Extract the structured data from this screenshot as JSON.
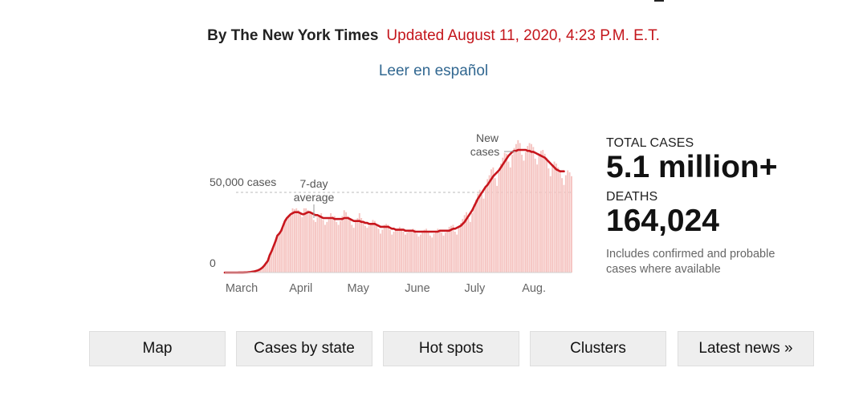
{
  "byline": {
    "author": "By The New York Times",
    "updated": "Updated August 11, 2020, 4:23 P.M. E.T."
  },
  "spanish_link": "Leer en español",
  "stats": {
    "total_label": "TOTAL CASES",
    "total_value": "5.1 million+",
    "deaths_label": "DEATHS",
    "deaths_value": "164,024",
    "note": "Includes confirmed and probable cases where available"
  },
  "buttons": {
    "map": "Map",
    "cases_by_state": "Cases by state",
    "hot_spots": "Hot spots",
    "clusters": "Clusters",
    "latest_news": "Latest news »"
  },
  "colors": {
    "accent_red": "#c4161c",
    "link_blue": "#326891",
    "bar_fill": "#f5c4c1",
    "avg_line": "#c8161d"
  },
  "chart_data": {
    "type": "bar",
    "title": "",
    "xlabel": "",
    "ylabel": "",
    "x_start": "2020-03-01",
    "ylim": [
      0,
      70000
    ],
    "ytick_labels": [
      "0",
      "50,000 cases"
    ],
    "ytick_values": [
      0,
      50000
    ],
    "xtick_labels": [
      "March",
      "April",
      "May",
      "June",
      "July",
      "Aug."
    ],
    "xtick_dates": [
      "2020-03-01",
      "2020-04-01",
      "2020-05-01",
      "2020-06-01",
      "2020-07-01",
      "2020-08-01"
    ],
    "annotations": {
      "avg_label": "7-day average",
      "new_label": "New cases"
    },
    "legend": "none",
    "grid": false,
    "series": [
      {
        "name": "New cases",
        "kind": "bar",
        "values": [
          0,
          0,
          0,
          0,
          0,
          10,
          20,
          40,
          70,
          100,
          200,
          300,
          450,
          600,
          900,
          1200,
          1700,
          2400,
          3400,
          4700,
          6000,
          9000,
          11000,
          13500,
          16000,
          19000,
          20000,
          21500,
          24000,
          26500,
          28000,
          29000,
          30000,
          33000,
          32500,
          33000,
          32000,
          30000,
          28500,
          33000,
          33000,
          32000,
          30500,
          30000,
          27000,
          26000,
          28500,
          29500,
          30500,
          27000,
          24500,
          26000,
          27500,
          30500,
          29000,
          29000,
          26000,
          24500,
          26500,
          29000,
          32000,
          31000,
          29000,
          27000,
          24500,
          23000,
          26000,
          28000,
          30500,
          28000,
          26500,
          24000,
          23000,
          24000,
          25500,
          27000,
          26500,
          25000,
          22500,
          20000,
          22000,
          24500,
          25000,
          24500,
          22000,
          19500,
          21000,
          22500,
          22500,
          23500,
          22500,
          21000,
          19500,
          20500,
          21500,
          22000,
          22500,
          22000,
          20000,
          18500,
          19500,
          21500,
          22000,
          22500,
          21000,
          19000,
          18000,
          20000,
          21500,
          22500,
          22000,
          20500,
          19000,
          20500,
          22000,
          23500,
          24000,
          24500,
          21000,
          19500,
          23000,
          25500,
          27500,
          29500,
          31000,
          28000,
          26000,
          30500,
          35000,
          37500,
          40500,
          42500,
          40000,
          38000,
          44500,
          48000,
          50000,
          53000,
          54000,
          48500,
          44500,
          51500,
          56000,
          59000,
          61500,
          61000,
          57000,
          54000,
          60500,
          64000,
          66000,
          68000,
          66500,
          60500,
          57500,
          62000,
          65000,
          66500,
          66000,
          64500,
          58500,
          55500,
          60000,
          62500,
          63000,
          61000,
          59000,
          53500,
          49500,
          55000,
          57000,
          56000,
          54000,
          52500,
          48500,
          45000,
          50000,
          52500,
          51500,
          49500
        ]
      },
      {
        "name": "7-day average",
        "kind": "line",
        "values": [
          0,
          0,
          0,
          0,
          0,
          10,
          20,
          40,
          70,
          100,
          200,
          300,
          450,
          600,
          900,
          1200,
          1700,
          2400,
          3400,
          4700,
          6000,
          9000,
          11000,
          13500,
          16000,
          19000,
          20000,
          21500,
          24000,
          26500,
          28000,
          29000,
          30000,
          30500,
          31000,
          31000,
          31000,
          30500,
          30000,
          30000,
          30500,
          31000,
          31000,
          30500,
          30000,
          29500,
          29500,
          29000,
          28500,
          28000,
          28000,
          28000,
          28000,
          28000,
          28000,
          27500,
          27500,
          27500,
          27500,
          27500,
          28000,
          28000,
          28000,
          27500,
          27000,
          26500,
          26500,
          26500,
          26500,
          26000,
          26000,
          25500,
          25500,
          25000,
          25000,
          25000,
          25000,
          24500,
          24000,
          23500,
          23500,
          23500,
          23500,
          23500,
          23000,
          22500,
          22500,
          22000,
          22000,
          22000,
          22000,
          22000,
          21500,
          21500,
          21500,
          21500,
          21500,
          21000,
          21000,
          21000,
          21000,
          21000,
          21000,
          21000,
          21000,
          21000,
          21000,
          21000,
          21000,
          21000,
          21500,
          21500,
          21500,
          21500,
          21500,
          21500,
          22000,
          22500,
          22500,
          23000,
          23500,
          24000,
          25000,
          26000,
          27500,
          29000,
          30500,
          32000,
          34000,
          36000,
          38000,
          39500,
          41000,
          42500,
          44000,
          45000,
          46500,
          48000,
          49500,
          50500,
          51500,
          52500,
          54000,
          55500,
          57000,
          58500,
          60000,
          61000,
          62000,
          62500,
          62500,
          63000,
          63000,
          63000,
          63000,
          63000,
          62500,
          62500,
          62000,
          62000,
          61500,
          61000,
          60500,
          60000,
          59500,
          59000,
          58000,
          57000,
          56000,
          55000,
          54000,
          53000,
          52500,
          52000,
          52000,
          52000
        ]
      }
    ]
  }
}
